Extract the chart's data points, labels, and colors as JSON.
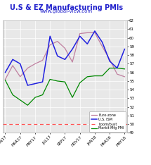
{
  "title": "U.S & EZ Manufacturing PMIs",
  "subtitle": "www.global-view.com",
  "x_labels": [
    "JAN17",
    "MAR17",
    "MAY17",
    "JUL17",
    "SEP17",
    "NOV17",
    "JAN18",
    "MAR18",
    "MAY18"
  ],
  "euro_zone": [
    55.2,
    56.8,
    55.5,
    56.5,
    57.0,
    57.4,
    59.2,
    59.6,
    58.8,
    57.2,
    60.5,
    60.6,
    60.6,
    59.0,
    57.5,
    55.8,
    55.5
  ],
  "us_ism": [
    56.0,
    57.5,
    57.0,
    54.5,
    54.7,
    54.9,
    60.2,
    57.9,
    57.5,
    58.7,
    60.2,
    59.3,
    60.8,
    59.5,
    57.3,
    56.5,
    58.7
  ],
  "markit": [
    55.1,
    53.4,
    52.8,
    52.2,
    53.1,
    53.4,
    55.2,
    55.0,
    54.9,
    53.1,
    54.8,
    55.5,
    55.6,
    55.6,
    56.5,
    56.5,
    56.4
  ],
  "boom_bust": 50.0,
  "ylim": [
    49,
    62
  ],
  "yticks": [
    49,
    50,
    51,
    52,
    53,
    54,
    55,
    56,
    57,
    58,
    59,
    60,
    61,
    62
  ],
  "euro_color": "#c080a0",
  "ism_color": "#2020e0",
  "markit_color": "#008800",
  "boom_color": "#ff5555",
  "title_color": "#2020cc",
  "subtitle_color": "#2020cc",
  "bg_color": "#e8e8e8",
  "grid_color": "#ffffff",
  "legend_labels": [
    "Euro-zone",
    "U.S. ISM",
    "boom/bust",
    "Markit Mfg PMI"
  ]
}
